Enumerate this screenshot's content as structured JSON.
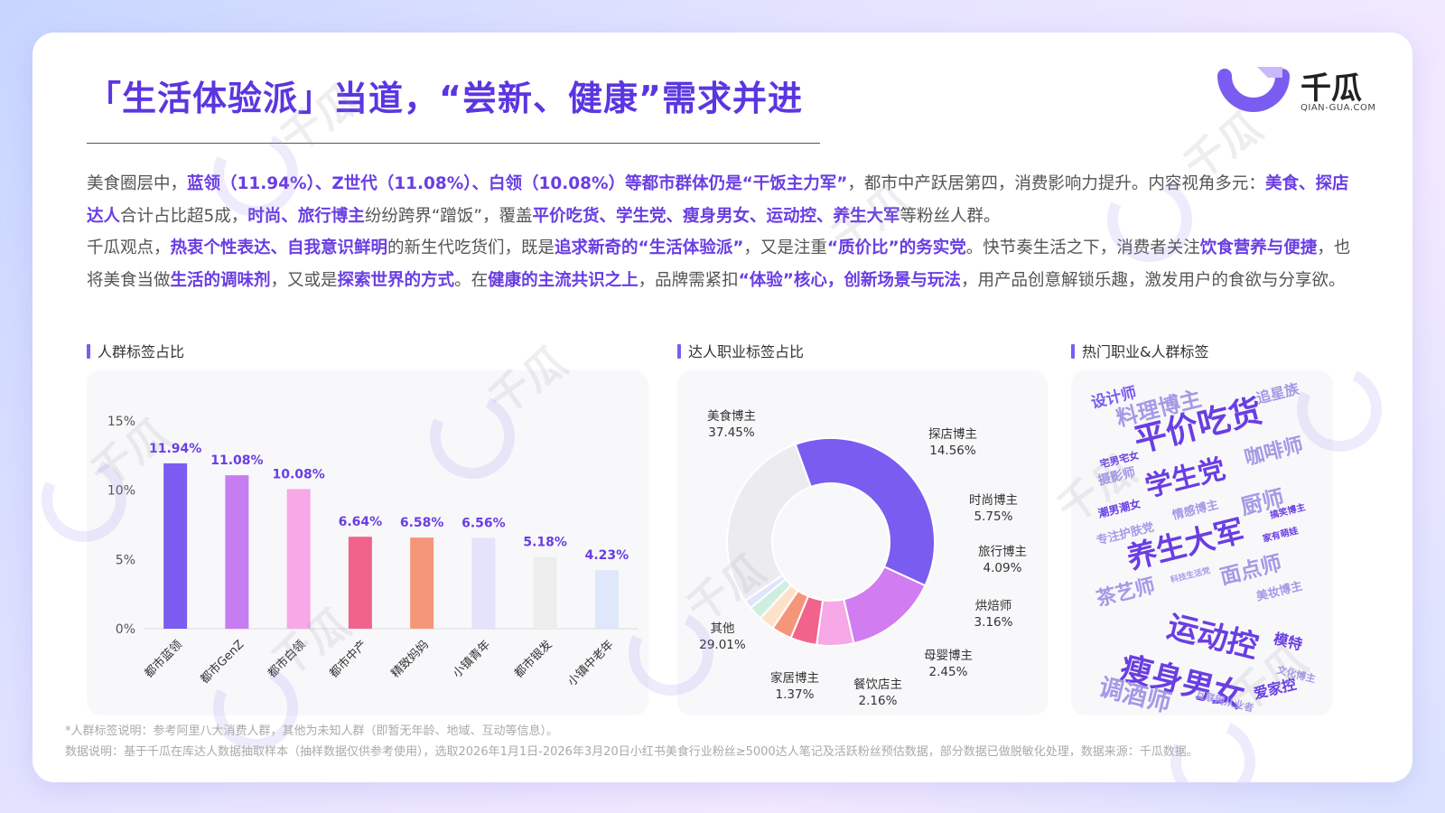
{
  "page": {
    "title": "「生活体验派」当道，“尝新、健康”需求并进",
    "brand": {
      "name": "千瓜",
      "url": "QIAN-GUA.COM"
    },
    "watermark": {
      "text": "千瓜",
      "url": "QIAN-GUA.COM"
    }
  },
  "paragraph1": [
    {
      "t": "美食圈层中，",
      "hl": false
    },
    {
      "t": "蓝领（11.94%）、Z世代（11.08%）、白领（10.08%）等都市群体仍是“干饭主力军”",
      "hl": true
    },
    {
      "t": "，都市中产跃居第四，消费影响力提升。内容视角多元：",
      "hl": false
    },
    {
      "t": "美食、探店达人",
      "hl": true
    },
    {
      "t": "合计占比超5成，",
      "hl": false
    },
    {
      "t": "时尚、旅行博主",
      "hl": true
    },
    {
      "t": "纷纷跨界“蹭饭”，覆盖",
      "hl": false
    },
    {
      "t": "平价吃货、学生党、瘦身男女、运动控、养生大军",
      "hl": true
    },
    {
      "t": "等粉丝人群。",
      "hl": false
    }
  ],
  "paragraph2": [
    {
      "t": "千瓜观点，",
      "hl": false
    },
    {
      "t": "热衷个性表达、自我意识鲜明",
      "hl": true
    },
    {
      "t": "的新生代吃货们，既是",
      "hl": false
    },
    {
      "t": "追求新奇的“生活体验派”",
      "hl": true
    },
    {
      "t": "，又是注重",
      "hl": false
    },
    {
      "t": "“质价比”的务实党",
      "hl": true
    },
    {
      "t": "。快节奏生活之下，消费者关注",
      "hl": false
    },
    {
      "t": "饮食营养与便捷",
      "hl": true
    },
    {
      "t": "，也将美食当做",
      "hl": false
    },
    {
      "t": "生活的调味剂",
      "hl": true
    },
    {
      "t": "，又或是",
      "hl": false
    },
    {
      "t": "探索世界的方式",
      "hl": true
    },
    {
      "t": "。在",
      "hl": false
    },
    {
      "t": "健康的主流共识之上",
      "hl": true
    },
    {
      "t": "，品牌需紧扣",
      "hl": false
    },
    {
      "t": "“体验”核心，创新场景与玩法",
      "hl": true
    },
    {
      "t": "，用产品创意解锁乐趣，激发用户的食欲与分享欲。",
      "hl": false
    }
  ],
  "sections": {
    "bar_title": "人群标签占比",
    "donut_title": "达人职业标签占比",
    "cloud_title": "热门职业&人群标签"
  },
  "chart_data": [
    {
      "type": "bar",
      "title": "人群标签占比",
      "categories": [
        "都市蓝领",
        "都市GenZ",
        "都市白领",
        "都市中产",
        "精致妈妈",
        "小镇青年",
        "都市银发",
        "小镇中老年"
      ],
      "values": [
        11.94,
        11.08,
        10.08,
        6.64,
        6.58,
        6.56,
        5.18,
        4.23
      ],
      "value_labels": [
        "11.94%",
        "11.08%",
        "10.08%",
        "6.64%",
        "6.58%",
        "6.56%",
        "5.18%",
        "4.23%"
      ],
      "colors": [
        "#7b5cf0",
        "#c77df2",
        "#f7a8e6",
        "#f0648c",
        "#f5967a",
        "#e4e3fb",
        "#ededed",
        "#dfe8fa"
      ],
      "yticks": [
        "0%",
        "5%",
        "10%",
        "15%"
      ],
      "ylim": [
        0,
        15
      ]
    },
    {
      "type": "pie",
      "title": "达人职业标签占比",
      "labels": [
        "美食博主",
        "探店博主",
        "时尚博主",
        "旅行博主",
        "烘焙师",
        "母婴博主",
        "餐饮店主",
        "家居博主",
        "其他"
      ],
      "values": [
        37.45,
        14.56,
        5.75,
        4.09,
        3.16,
        2.45,
        2.16,
        1.37,
        29.01
      ],
      "value_labels": [
        "37.45%",
        "14.56%",
        "5.75%",
        "4.09%",
        "3.16%",
        "2.45%",
        "2.16%",
        "1.37%",
        "29.01%"
      ],
      "colors": [
        "#7b5cf0",
        "#d17cf0",
        "#f7a8e6",
        "#f0648c",
        "#f5967a",
        "#fde2c8",
        "#cfeee0",
        "#dde6fb",
        "#ececf0"
      ]
    }
  ],
  "word_cloud": [
    {
      "text": "设计师",
      "color": "#7b5cf0"
    },
    {
      "text": "料理博主",
      "color": "#a49ae6"
    },
    {
      "text": "追星族",
      "color": "#a49ae6"
    },
    {
      "text": "平价吃货",
      "color": "#6a3ee2"
    },
    {
      "text": "咖啡师",
      "color": "#a49ae6"
    },
    {
      "text": "宅男宅女",
      "color": "#6a3ee2"
    },
    {
      "text": "摄影师",
      "color": "#a49ae6"
    },
    {
      "text": "学生党",
      "color": "#6a3ee2"
    },
    {
      "text": "厨师",
      "color": "#a49ae6"
    },
    {
      "text": "潮男潮女",
      "color": "#6a3ee2"
    },
    {
      "text": "情感博主",
      "color": "#a49ae6"
    },
    {
      "text": "搞笑博主",
      "color": "#6a3ee2"
    },
    {
      "text": "专注护肤党",
      "color": "#a49ae6"
    },
    {
      "text": "养生大军",
      "color": "#6a3ee2"
    },
    {
      "text": "家有萌娃",
      "color": "#6a3ee2"
    },
    {
      "text": "科技生活党",
      "color": "#a49ae6"
    },
    {
      "text": "面点师",
      "color": "#a49ae6"
    },
    {
      "text": "茶艺师",
      "color": "#a49ae6"
    },
    {
      "text": "美妆博主",
      "color": "#a49ae6"
    },
    {
      "text": "运动控",
      "color": "#6a3ee2"
    },
    {
      "text": "模特",
      "color": "#6a3ee2"
    },
    {
      "text": "瘦身男女",
      "color": "#6a3ee2"
    },
    {
      "text": "文化博主",
      "color": "#a49ae6"
    },
    {
      "text": "调酒师",
      "color": "#a49ae6"
    },
    {
      "text": "互联网从业者",
      "color": "#a49ae6"
    },
    {
      "text": "爱家控",
      "color": "#6a3ee2"
    }
  ],
  "notes": {
    "note1": "*人群标签说明：参考阿里八大消费人群，其他为未知人群（即暂无年龄、地域、互动等信息）。",
    "note2": "数据说明：基于千瓜在库达人数据抽取样本（抽样数据仅供参考使用），选取2026年1月1日-2026年3月20日小红书美食行业粉丝≥5000达人笔记及活跃粉丝预估数据，部分数据已做脱敏化处理，数据来源：千瓜数据。"
  }
}
